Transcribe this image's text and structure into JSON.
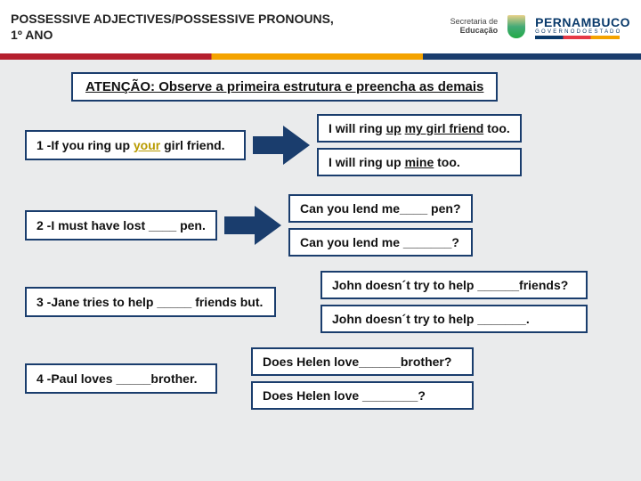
{
  "header": {
    "title_line1": "POSSESSIVE ADJECTIVES/POSSESSIVE PRONOUNS,",
    "title_line2": "1º ANO",
    "sec_edu1": "Secretaria de",
    "sec_edu2": "Educação",
    "pe_text": "PERNAMBUCO",
    "pe_sub": "G O V E R N O   D O   E S T A D O"
  },
  "attention": "ATENÇÃO: Observe a primeira estrutura e preencha as demais",
  "rows": [
    {
      "left_pre": "1 -If you ring up ",
      "left_emph": "your",
      "left_post": " girl friend.",
      "r1_pre": "I will ring ",
      "r1_u1": "up",
      "r1_mid": " ",
      "r1_u2": "my girl friend",
      "r1_post": " too.",
      "r2_pre": "I will ring up ",
      "r2_u": "mine",
      "r2_post": " too."
    },
    {
      "left": "2 -I must have lost ____ pen.",
      "r1": "Can you lend me____ pen?",
      "r2": "Can you lend me  _______?"
    },
    {
      "left": "3 -Jane tries to help _____ friends but.",
      "r1": "John doesn´t try to help ______friends?",
      "r2": "John doesn´t try to help _______."
    },
    {
      "left": "4 -Paul loves _____brother.",
      "r1": "Does Helen love______brother?",
      "r2": "Does Helen love ________?"
    }
  ],
  "colors": {
    "box_border": "#1a3d6d",
    "background": "#eaebec",
    "arrow": "#1a3d6d"
  }
}
